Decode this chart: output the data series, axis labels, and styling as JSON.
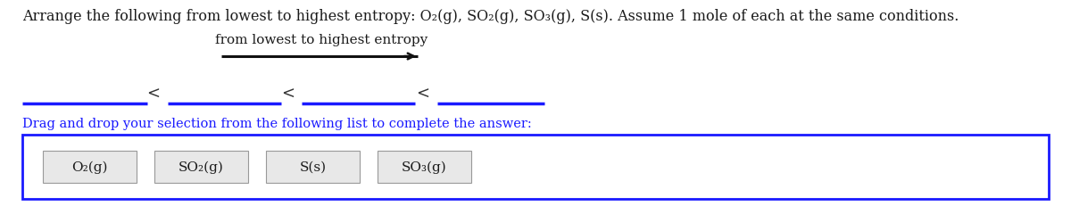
{
  "title_text": "Arrange the following from lowest to highest entropy: O₂(g), SO₂(g), SO₃(g), S(s). Assume 1 mole of each at the same conditions.",
  "arrow_label": "from lowest to highest entropy",
  "drag_drop_text": "Drag and drop your selection from the following list to complete the answer:",
  "choices": [
    "O₂(g)",
    "SO₂(g)",
    "S(s)",
    "SO₃(g)"
  ],
  "background_color": "#ffffff",
  "blue_color": "#1a1aff",
  "text_color": "#1a1a1a",
  "line_color": "#1a1aff",
  "box_border_color": "#1a1aff",
  "arrow_line_color": "#111111",
  "less_than_color": "#333333",
  "title_fontsize": 11.5,
  "arrow_label_fontsize": 11.0,
  "drag_fontsize": 10.5,
  "choice_fontsize": 11.0,
  "line_lw": 2.5,
  "arrow_lw": 1.8,
  "choice_box_color": "#e8e8e8",
  "choice_box_border": "#999999"
}
